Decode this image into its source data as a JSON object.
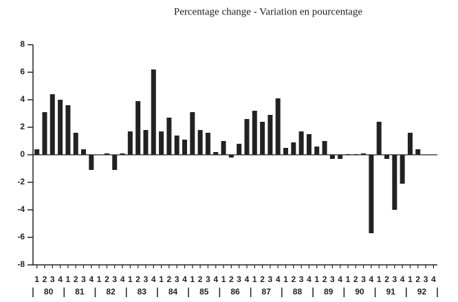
{
  "chart_data": {
    "type": "bar",
    "title": "Percentage change - Variation en pourcentage",
    "categories": [
      "1",
      "2",
      "3",
      "4",
      "1",
      "2",
      "3",
      "4",
      "1",
      "2",
      "3",
      "4",
      "1",
      "2",
      "3",
      "4",
      "1",
      "2",
      "3",
      "4",
      "1",
      "2",
      "3",
      "4",
      "1",
      "2",
      "3",
      "4",
      "1",
      "2",
      "3",
      "4",
      "1",
      "2",
      "3",
      "4",
      "1",
      "2",
      "3",
      "4",
      "1",
      "2",
      "3",
      "4",
      "1",
      "2",
      "3",
      "4",
      "1",
      "2",
      "3",
      "4"
    ],
    "years": [
      "80",
      "81",
      "82",
      "83",
      "84",
      "85",
      "86",
      "87",
      "88",
      "89",
      "90",
      "91",
      "92"
    ],
    "values": [
      0.4,
      3.1,
      4.4,
      4.0,
      3.6,
      1.6,
      0.4,
      -1.1,
      0.0,
      0.1,
      -1.1,
      0.1,
      1.7,
      3.9,
      1.8,
      6.2,
      1.7,
      2.7,
      1.4,
      1.1,
      3.1,
      1.8,
      1.6,
      0.2,
      1.0,
      -0.2,
      0.8,
      2.6,
      3.2,
      2.4,
      2.9,
      4.1,
      0.5,
      0.9,
      1.7,
      1.5,
      0.6,
      1.0,
      -0.3,
      -0.3,
      0.05,
      0.05,
      0.1,
      -5.7,
      2.4,
      -0.3,
      -4.0,
      -2.1,
      1.6,
      0.4,
      null,
      null
    ],
    "color": "#222222",
    "ylim": [
      -8,
      8
    ],
    "yticks": [
      -8,
      -6,
      -4,
      -2,
      0,
      2,
      4,
      6,
      8
    ]
  }
}
